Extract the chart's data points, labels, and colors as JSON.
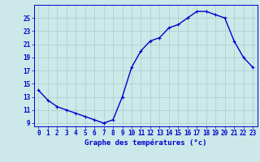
{
  "hours": [
    0,
    1,
    2,
    3,
    4,
    5,
    6,
    7,
    8,
    9,
    10,
    11,
    12,
    13,
    14,
    15,
    16,
    17,
    18,
    19,
    20,
    21,
    22,
    23
  ],
  "temperatures": [
    14.0,
    12.5,
    11.5,
    11.0,
    10.5,
    10.0,
    9.5,
    9.0,
    9.5,
    13.0,
    17.5,
    20.0,
    21.5,
    22.0,
    23.5,
    24.0,
    25.0,
    26.0,
    26.0,
    25.5,
    25.0,
    21.5,
    19.0,
    17.5
  ],
  "xlabel": "Graphe des températures (°c)",
  "ylabel_ticks": [
    9,
    11,
    13,
    15,
    17,
    19,
    21,
    23,
    25
  ],
  "xlim": [
    -0.5,
    23.5
  ],
  "ylim": [
    8.5,
    27.0
  ],
  "bg_color": "#cce8e8",
  "line_color": "#0000cc",
  "grid_color": "#aacccc",
  "axis_color": "#0000cc",
  "label_color": "#0000cc",
  "tick_label_color": "#0000cc",
  "xlabel_fontsize": 6.5,
  "tick_fontsize": 5.5,
  "linewidth": 1.0,
  "marker": "+",
  "markersize": 3.5,
  "markeredgewidth": 0.8
}
